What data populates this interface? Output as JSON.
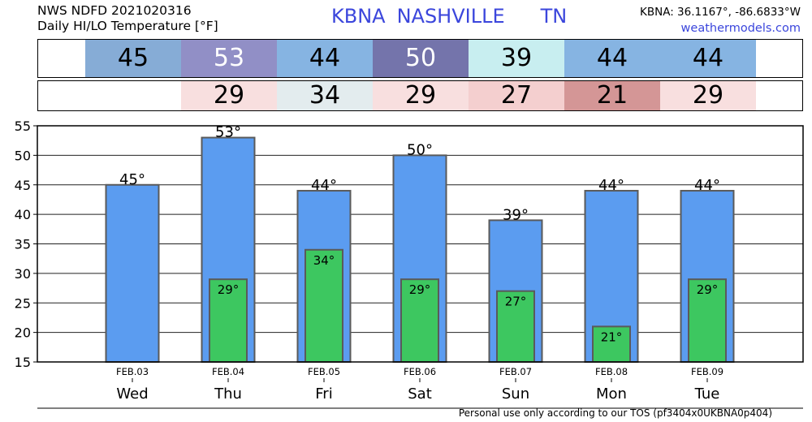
{
  "header": {
    "title_line1": "NWS NDFD 2021020316",
    "title_line2": "Daily HI/LO Temperature [°F]",
    "station": "KBNA",
    "city": "NASHVILLE",
    "state": "TN",
    "coords": "KBNA: 36.1167°, -86.6833°W",
    "site": "weathermodels.com"
  },
  "footer": "Personal use only according to our TOS (pf3404x0UKBNA0p404)",
  "colors": {
    "high_bar": "#5b9cf0",
    "low_bar": "#3dc760",
    "accent": "#3b46dc",
    "hi_cells": [
      "#86acd6",
      "#918fc6",
      "#86b4e2",
      "#7474ab",
      "#c8eef0",
      "#86b4e2",
      "#86b4e2"
    ],
    "lo_cells": [
      "",
      "#f8dfdf",
      "#e3ecee",
      "#f8dfdf",
      "#f4cfcf",
      "#d49696",
      "#f8dfdf"
    ]
  },
  "chart_data": {
    "type": "bar",
    "categories": [
      "FEB.03",
      "FEB.04",
      "FEB.05",
      "FEB.06",
      "FEB.07",
      "FEB.08",
      "FEB.09"
    ],
    "weekdays": [
      "Wed",
      "Thu",
      "Fri",
      "Sat",
      "Sun",
      "Mon",
      "Tue"
    ],
    "series": [
      {
        "values": [
          45,
          53,
          44,
          50,
          39,
          44,
          44
        ]
      },
      {
        "values": [
          null,
          29,
          34,
          29,
          27,
          21,
          29
        ]
      }
    ],
    "value_labels_high": [
      "45°",
      "53°",
      "44°",
      "50°",
      "39°",
      "44°",
      "44°"
    ],
    "value_labels_low": [
      "",
      "29°",
      "34°",
      "29°",
      "27°",
      "21°",
      "29°"
    ],
    "yticks": [
      "15",
      "20",
      "25",
      "30",
      "35",
      "40",
      "45",
      "50",
      "55"
    ],
    "ylim": [
      15,
      55
    ],
    "grid": true
  }
}
